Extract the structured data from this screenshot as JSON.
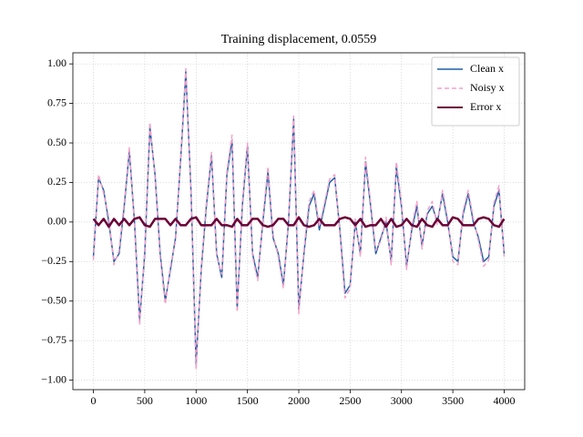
{
  "chart_data": {
    "type": "line",
    "title": "Training displacement, 0.0559",
    "x": [
      0,
      50,
      100,
      150,
      200,
      250,
      300,
      350,
      400,
      450,
      500,
      550,
      600,
      650,
      700,
      750,
      800,
      850,
      900,
      950,
      1000,
      1050,
      1100,
      1150,
      1200,
      1250,
      1300,
      1350,
      1400,
      1450,
      1500,
      1550,
      1600,
      1650,
      1700,
      1750,
      1800,
      1850,
      1900,
      1950,
      2000,
      2050,
      2100,
      2150,
      2200,
      2250,
      2300,
      2350,
      2400,
      2450,
      2500,
      2550,
      2600,
      2650,
      2700,
      2750,
      2800,
      2850,
      2900,
      2950,
      3000,
      3050,
      3100,
      3150,
      3200,
      3250,
      3300,
      3350,
      3400,
      3450,
      3500,
      3550,
      3600,
      3650,
      3700,
      3750,
      3800,
      3850,
      3900,
      3950,
      4000
    ],
    "series": [
      {
        "name": "Clean x",
        "color": "#1f5fa8",
        "dash": false,
        "width": 1.5,
        "values": [
          -0.22,
          0.28,
          0.2,
          0.0,
          -0.25,
          -0.2,
          0.1,
          0.45,
          0.0,
          -0.62,
          -0.2,
          0.6,
          0.3,
          -0.2,
          -0.5,
          -0.3,
          -0.1,
          0.4,
          0.95,
          0.2,
          -0.9,
          -0.3,
          0.1,
          0.42,
          -0.2,
          -0.35,
          0.3,
          0.52,
          -0.55,
          0.1,
          0.48,
          -0.2,
          -0.35,
          0.0,
          0.32,
          -0.1,
          -0.2,
          -0.4,
          0.0,
          0.65,
          -0.55,
          -0.2,
          0.1,
          0.18,
          -0.05,
          0.1,
          0.25,
          0.28,
          -0.05,
          -0.45,
          -0.4,
          0.0,
          -0.2,
          0.38,
          0.1,
          -0.2,
          -0.1,
          0.0,
          -0.25,
          0.35,
          0.1,
          -0.28,
          -0.05,
          0.1,
          -0.15,
          0.05,
          0.1,
          0.0,
          0.18,
          0.0,
          -0.22,
          -0.25,
          0.05,
          0.18,
          0.0,
          -0.1,
          -0.25,
          -0.22,
          0.1,
          0.2,
          -0.2
        ]
      },
      {
        "name": "Noisy x",
        "color": "#f4a0c8",
        "dash": true,
        "width": 1.5,
        "values": [
          -0.24,
          0.3,
          0.18,
          0.03,
          -0.27,
          -0.18,
          0.12,
          0.47,
          -0.02,
          -0.65,
          -0.18,
          0.63,
          0.28,
          -0.22,
          -0.52,
          -0.28,
          -0.12,
          0.42,
          0.97,
          0.18,
          -0.93,
          -0.28,
          0.12,
          0.44,
          -0.22,
          -0.33,
          0.32,
          0.55,
          -0.57,
          0.12,
          0.5,
          -0.22,
          -0.37,
          0.02,
          0.35,
          -0.08,
          -0.22,
          -0.42,
          0.02,
          0.67,
          -0.58,
          -0.18,
          0.13,
          0.2,
          -0.03,
          0.12,
          0.27,
          0.3,
          -0.07,
          -0.48,
          -0.42,
          0.02,
          -0.22,
          0.41,
          0.12,
          -0.18,
          -0.12,
          0.03,
          -0.27,
          0.38,
          0.12,
          -0.3,
          -0.03,
          0.13,
          -0.17,
          0.07,
          0.13,
          -0.02,
          0.2,
          0.02,
          -0.25,
          -0.27,
          0.07,
          0.2,
          0.02,
          -0.12,
          -0.28,
          -0.24,
          0.12,
          0.23,
          -0.22
        ]
      },
      {
        "name": "Error x",
        "color": "#6b0036",
        "dash": false,
        "width": 2.5,
        "values": [
          0.02,
          -0.02,
          0.02,
          -0.03,
          0.02,
          -0.02,
          0.02,
          -0.02,
          0.02,
          0.03,
          -0.02,
          -0.03,
          0.02,
          0.02,
          0.02,
          -0.02,
          0.02,
          -0.02,
          -0.02,
          0.02,
          0.03,
          -0.02,
          -0.02,
          -0.02,
          0.02,
          -0.02,
          -0.02,
          -0.03,
          0.02,
          -0.02,
          -0.02,
          0.02,
          0.02,
          -0.02,
          -0.03,
          -0.02,
          0.02,
          0.02,
          -0.02,
          -0.02,
          0.03,
          -0.02,
          -0.03,
          -0.02,
          0.02,
          -0.02,
          -0.02,
          -0.02,
          0.02,
          0.03,
          0.02,
          -0.02,
          0.02,
          -0.03,
          -0.02,
          -0.02,
          0.02,
          -0.03,
          0.02,
          -0.03,
          -0.02,
          0.02,
          -0.02,
          -0.03,
          0.02,
          -0.02,
          -0.03,
          0.02,
          -0.02,
          -0.02,
          0.03,
          0.02,
          -0.02,
          -0.02,
          -0.02,
          0.02,
          0.03,
          0.02,
          -0.02,
          -0.03,
          0.02
        ]
      }
    ],
    "xlim": [
      -200,
      4200
    ],
    "ylim": [
      -1.06,
      1.07
    ],
    "xticks": [
      0,
      500,
      1000,
      1500,
      2000,
      2500,
      3000,
      3500,
      4000
    ],
    "yticks": [
      {
        "value": -1,
        "label": "−1.00"
      },
      {
        "value": -0.75,
        "label": "−0.75"
      },
      {
        "value": -0.5,
        "label": "−0.50"
      },
      {
        "value": -0.25,
        "label": "−0.25"
      },
      {
        "value": 0,
        "label": "0.00"
      },
      {
        "value": 0.25,
        "label": "0.25"
      },
      {
        "value": 0.5,
        "label": "0.50"
      },
      {
        "value": 0.75,
        "label": "0.75"
      },
      {
        "value": 1,
        "label": "1.00"
      }
    ],
    "grid": true,
    "legend": "upper right"
  }
}
